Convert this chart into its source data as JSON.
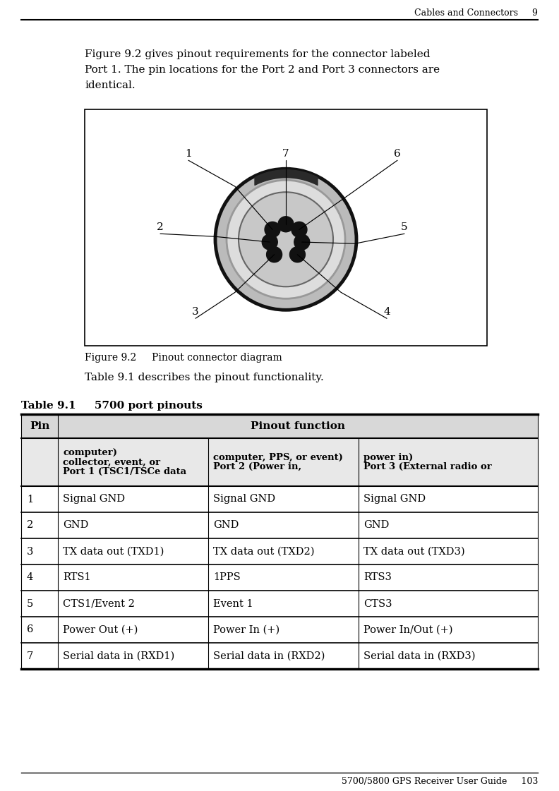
{
  "page_header": "Cables and Connectors     9",
  "header_line": true,
  "body_text": "Figure 9.2 gives pinout requirements for the connector labeled\nPort 1. The pin locations for the Port 2 and Port 3 connectors are\nidentical.",
  "figure_caption": "Figure 9.2     Pinout connector diagram",
  "table_title": "Table 9.1     5700 port pinouts",
  "table_subtitle_sentence": "Table 9.1 describes the pinout functionality.",
  "footer": "5700/5800 GPS Receiver User Guide     103",
  "col_headers": [
    "Pin",
    "Pinout function"
  ],
  "sub_col_headers": [
    "Port 1 (TSC1/TSCe data\ncollector, event, or\ncomputer)",
    "Port 2 (Power in,\ncomputer, PPS, or event)",
    "Port 3 (External radio or\npower in)"
  ],
  "rows": [
    [
      "1",
      "Signal GND",
      "Signal GND",
      "Signal GND"
    ],
    [
      "2",
      "GND",
      "GND",
      "GND"
    ],
    [
      "3",
      "TX data out (TXD1)",
      "TX data out (TXD2)",
      "TX data out (TXD3)"
    ],
    [
      "4",
      "RTS1",
      "1PPS",
      "RTS3"
    ],
    [
      "5",
      "CTS1/Event 2",
      "Event 1",
      "CTS3"
    ],
    [
      "6",
      "Power Out (+)",
      "Power In (+)",
      "Power In/Out (+)"
    ],
    [
      "7",
      "Serial data in (RXD1)",
      "Serial data in (RXD2)",
      "Serial data in (RXD3)"
    ]
  ],
  "colors": {
    "page_bg": "#ffffff",
    "table_header_bg": "#d8d8d8",
    "sub_header_bg": "#e8e8e8",
    "row_bg": "#ffffff",
    "line_color": "#000000"
  }
}
